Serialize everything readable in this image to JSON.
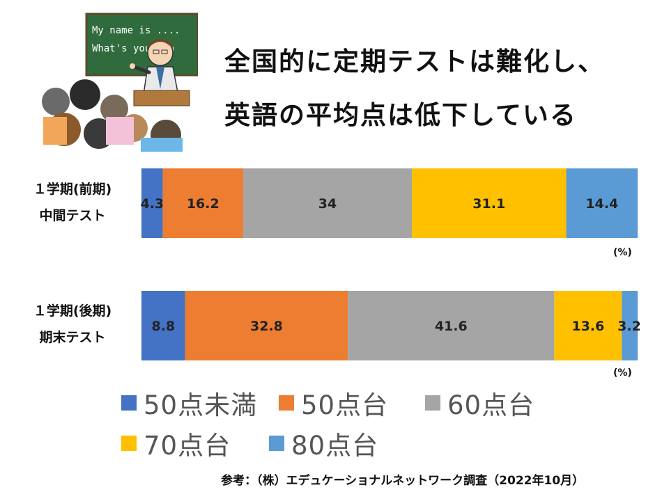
{
  "title": {
    "line1": "全国的に定期テストは難化し、",
    "line2": "英語の平均点は低下している"
  },
  "illustration": {
    "board_line1": "My name is ....",
    "board_line2": "What's your na"
  },
  "chart_data": {
    "type": "bar",
    "orientation": "horizontal",
    "stacked": true,
    "normalized": true,
    "categories": [
      "１学期(前期)\n中間テスト",
      "１学期(後期)\n期末テスト"
    ],
    "category_lines": [
      [
        "１学期(前期)",
        "中間テスト"
      ],
      [
        "１学期(後期)",
        "期末テスト"
      ]
    ],
    "series": [
      {
        "name": "50点未満",
        "color": "#4472C4",
        "values": [
          4.3,
          8.8
        ]
      },
      {
        "name": "50点台",
        "color": "#ED7D31",
        "values": [
          16.2,
          32.8
        ]
      },
      {
        "name": "60点台",
        "color": "#A5A5A5",
        "values": [
          34,
          41.6
        ]
      },
      {
        "name": "70点台",
        "color": "#FFC000",
        "values": [
          31.1,
          13.6
        ]
      },
      {
        "name": "80点台",
        "color": "#5B9BD5",
        "values": [
          14.4,
          3.2
        ]
      }
    ],
    "unit_label": "(%)",
    "legend_position": "bottom",
    "grid": false
  },
  "source": "参考：（株）エデュケーショナルネットワーク調査（2022年10月）"
}
